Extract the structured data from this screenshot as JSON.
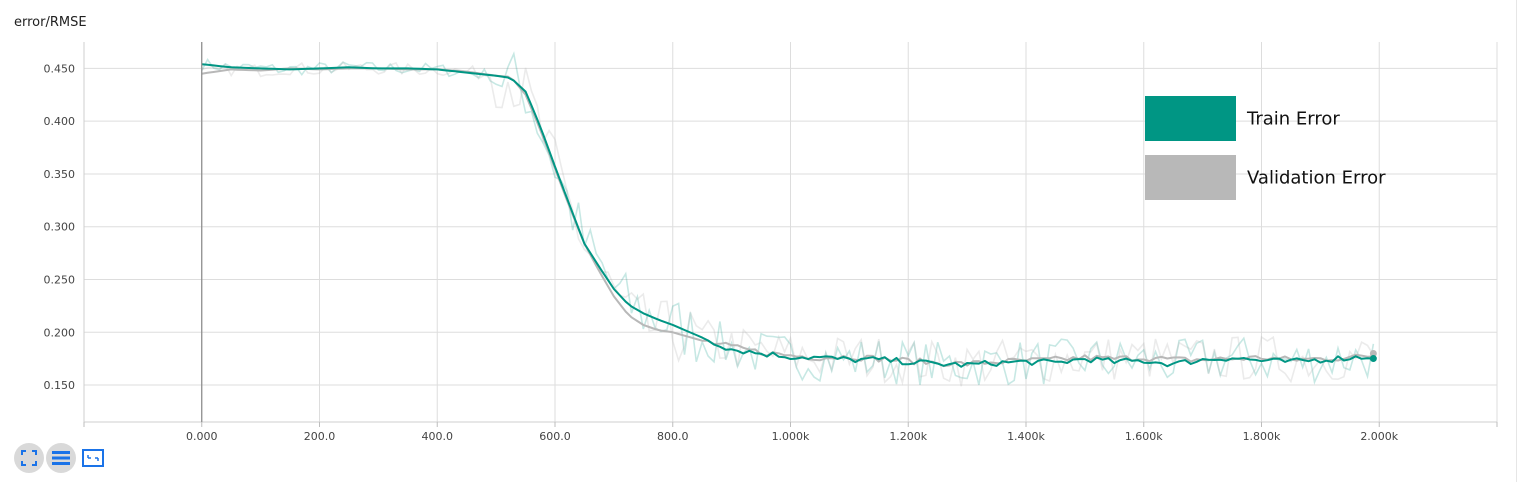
{
  "card": {
    "title": "error/RMSE"
  },
  "toolbar": {
    "buttons": [
      {
        "name": "fullscreen-icon"
      },
      {
        "name": "list-icon"
      },
      {
        "name": "fit-domain-icon"
      }
    ]
  },
  "colors": {
    "train": "#009684",
    "validation": "#b8b8b8",
    "grid": "#dddddd",
    "axis": "#888888"
  },
  "chart_data": {
    "type": "line",
    "title": "error/RMSE",
    "xlabel": "",
    "ylabel": "",
    "xlim": [
      -200,
      2200
    ],
    "ylim": [
      0.115,
      0.475
    ],
    "grid": true,
    "legend_position": "top-right",
    "x_ticks": [
      {
        "value": 0,
        "label": "0.000"
      },
      {
        "value": 200,
        "label": "200.0"
      },
      {
        "value": 400,
        "label": "400.0"
      },
      {
        "value": 600,
        "label": "600.0"
      },
      {
        "value": 800,
        "label": "800.0"
      },
      {
        "value": 1000,
        "label": "1.000k"
      },
      {
        "value": 1200,
        "label": "1.200k"
      },
      {
        "value": 1400,
        "label": "1.400k"
      },
      {
        "value": 1600,
        "label": "1.600k"
      },
      {
        "value": 1800,
        "label": "1.800k"
      },
      {
        "value": 2000,
        "label": "2.000k"
      }
    ],
    "y_ticks": [
      {
        "value": 0.45,
        "label": "0.450"
      },
      {
        "value": 0.4,
        "label": "0.400"
      },
      {
        "value": 0.35,
        "label": "0.350"
      },
      {
        "value": 0.3,
        "label": "0.300"
      },
      {
        "value": 0.25,
        "label": "0.250"
      },
      {
        "value": 0.2,
        "label": "0.200"
      },
      {
        "value": 0.15,
        "label": "0.150"
      }
    ],
    "x": [
      0,
      50,
      100,
      150,
      200,
      250,
      300,
      350,
      400,
      450,
      500,
      525,
      550,
      575,
      600,
      625,
      650,
      675,
      700,
      725,
      750,
      775,
      800,
      850,
      900,
      950,
      1000,
      1050,
      1100,
      1150,
      1200,
      1250,
      1300,
      1350,
      1400,
      1450,
      1500,
      1550,
      1600,
      1650,
      1700,
      1750,
      1800,
      1850,
      1900,
      1950,
      1990
    ],
    "series": [
      {
        "name": "Train Error",
        "color": "#009684",
        "values": [
          0.454,
          0.451,
          0.45,
          0.449,
          0.45,
          0.451,
          0.45,
          0.45,
          0.449,
          0.446,
          0.443,
          0.441,
          0.428,
          0.395,
          0.357,
          0.32,
          0.284,
          0.262,
          0.241,
          0.226,
          0.218,
          0.212,
          0.207,
          0.195,
          0.184,
          0.18,
          0.177,
          0.176,
          0.174,
          0.174,
          0.172,
          0.17,
          0.169,
          0.171,
          0.172,
          0.171,
          0.175,
          0.172,
          0.173,
          0.17,
          0.174,
          0.176,
          0.173,
          0.172,
          0.174,
          0.176,
          0.177
        ]
      },
      {
        "name": "Validation Error",
        "color": "#b8b8b8",
        "values": [
          0.445,
          0.449,
          0.448,
          0.45,
          0.449,
          0.45,
          0.45,
          0.449,
          0.449,
          0.447,
          0.443,
          0.442,
          0.425,
          0.392,
          0.355,
          0.318,
          0.284,
          0.258,
          0.234,
          0.216,
          0.207,
          0.202,
          0.2,
          0.192,
          0.186,
          0.181,
          0.178,
          0.176,
          0.177,
          0.175,
          0.173,
          0.171,
          0.17,
          0.172,
          0.173,
          0.174,
          0.176,
          0.175,
          0.176,
          0.174,
          0.174,
          0.175,
          0.176,
          0.174,
          0.175,
          0.176,
          0.178
        ]
      }
    ],
    "legend": [
      {
        "label": "Train Error",
        "color": "#009684"
      },
      {
        "label": "Validation Error",
        "color": "#b8b8b8"
      }
    ]
  }
}
